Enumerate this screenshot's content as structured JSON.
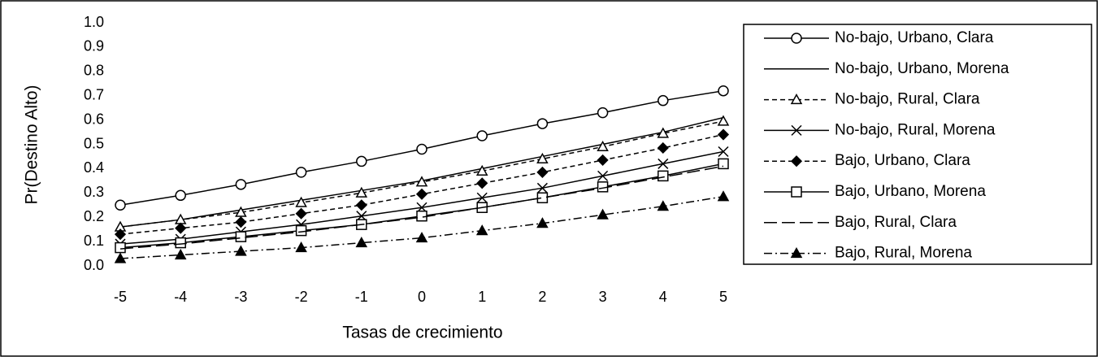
{
  "chart_data": {
    "type": "line",
    "y_label": "Pr(Destino Alto)",
    "x_label": "Tasas de crecimiento",
    "x": [
      -5,
      -4,
      -3,
      -2,
      -1,
      0,
      1,
      2,
      3,
      4,
      5
    ],
    "xlim": [
      -5,
      5
    ],
    "xticks": [
      -5,
      -4,
      -3,
      -2,
      -1,
      0,
      1,
      2,
      3,
      4,
      5
    ],
    "ylim": [
      0,
      1
    ],
    "yticks": [
      {
        "value": 0,
        "label": "0.0"
      },
      0.1,
      0.2,
      0.3,
      0.4,
      0.5,
      0.6,
      0.7,
      0.8,
      0.9,
      {
        "value": 1,
        "label": "1.0"
      }
    ],
    "grid": false,
    "legend": "right",
    "series": [
      {
        "name": "No-bajo, Urbano, Clara",
        "color": "#000000",
        "marker": "open-circle",
        "dash": "solid",
        "values": [
          0.25,
          0.29,
          0.335,
          0.385,
          0.43,
          0.48,
          0.535,
          0.585,
          0.63,
          0.68,
          0.72
        ]
      },
      {
        "name": "No-bajo, Urbano, Morena",
        "color": "#000000",
        "marker": "none",
        "dash": "solid",
        "values": [
          0.16,
          0.19,
          0.23,
          0.27,
          0.31,
          0.35,
          0.4,
          0.45,
          0.5,
          0.55,
          0.61
        ]
      },
      {
        "name": "No-bajo, Rural, Clara",
        "color": "#000000",
        "marker": "open-triangle",
        "dash": "dashed",
        "values": [
          0.16,
          0.19,
          0.22,
          0.26,
          0.3,
          0.345,
          0.39,
          0.44,
          0.49,
          0.545,
          0.595
        ]
      },
      {
        "name": "No-bajo, Rural, Morena",
        "color": "#000000",
        "marker": "x",
        "dash": "solid",
        "values": [
          0.09,
          0.11,
          0.14,
          0.17,
          0.205,
          0.24,
          0.28,
          0.32,
          0.37,
          0.42,
          0.47
        ]
      },
      {
        "name": "Bajo, Urbano, Clara",
        "color": "#000000",
        "marker": "filled-diamond",
        "dash": "dashed",
        "values": [
          0.13,
          0.155,
          0.18,
          0.215,
          0.25,
          0.295,
          0.34,
          0.385,
          0.435,
          0.485,
          0.54
        ]
      },
      {
        "name": "Bajo, Urbano, Morena",
        "color": "#000000",
        "marker": "open-square",
        "dash": "solid",
        "values": [
          0.075,
          0.095,
          0.12,
          0.145,
          0.17,
          0.205,
          0.24,
          0.28,
          0.325,
          0.37,
          0.42
        ]
      },
      {
        "name": "Bajo, Rural, Clara",
        "color": "#000000",
        "marker": "none",
        "dash": "long-dash",
        "values": [
          0.07,
          0.09,
          0.115,
          0.14,
          0.17,
          0.2,
          0.24,
          0.28,
          0.32,
          0.365,
          0.41
        ]
      },
      {
        "name": "Bajo, Rural, Morena",
        "color": "#000000",
        "marker": "filled-triangle",
        "dash": "dash-dot",
        "values": [
          0.03,
          0.045,
          0.06,
          0.075,
          0.095,
          0.115,
          0.145,
          0.175,
          0.21,
          0.245,
          0.285
        ]
      }
    ]
  }
}
